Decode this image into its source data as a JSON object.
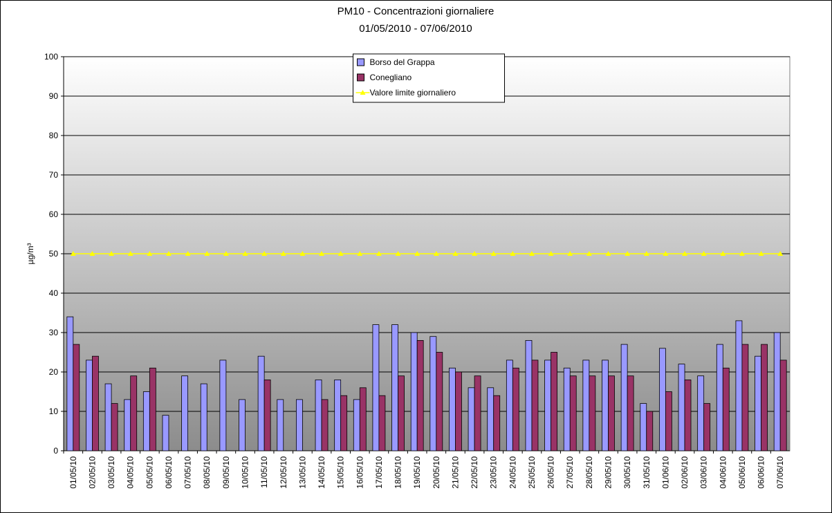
{
  "chart_data": {
    "type": "bar",
    "title": "PM10 - Concentrazioni giornaliere",
    "subtitle": "01/05/2010 - 07/06/2010",
    "y_label": "µg/m³",
    "categories": [
      "01/05/10",
      "02/05/10",
      "03/05/10",
      "04/05/10",
      "05/05/10",
      "06/05/10",
      "07/05/10",
      "08/05/10",
      "09/05/10",
      "10/05/10",
      "11/05/10",
      "12/05/10",
      "13/05/10",
      "14/05/10",
      "15/05/10",
      "16/05/10",
      "17/05/10",
      "18/05/10",
      "19/05/10",
      "20/05/10",
      "21/05/10",
      "22/05/10",
      "23/05/10",
      "24/05/10",
      "25/05/10",
      "26/05/10",
      "27/05/10",
      "28/05/10",
      "29/05/10",
      "30/05/10",
      "31/05/10",
      "01/06/10",
      "02/06/10",
      "03/06/10",
      "04/06/10",
      "05/06/10",
      "06/06/10",
      "07/06/10"
    ],
    "series": [
      {
        "name": "Borso del Grappa",
        "color": "#9999ff",
        "values": [
          34,
          23,
          17,
          13,
          15,
          9,
          19,
          17,
          23,
          13,
          24,
          13,
          13,
          18,
          18,
          13,
          32,
          32,
          30,
          29,
          21,
          16,
          16,
          23,
          28,
          23,
          21,
          23,
          23,
          27,
          12,
          26,
          22,
          19,
          27,
          33,
          24,
          30
        ]
      },
      {
        "name": "Conegliano",
        "color": "#993366",
        "values": [
          27,
          24,
          12,
          19,
          21,
          null,
          null,
          null,
          null,
          null,
          18,
          null,
          null,
          13,
          14,
          16,
          14,
          19,
          28,
          25,
          20,
          19,
          14,
          21,
          23,
          25,
          19,
          19,
          19,
          19,
          10,
          15,
          18,
          12,
          21,
          27,
          27,
          23
        ]
      },
      {
        "name": "Valore limite giornaliero",
        "color": "#ffff00",
        "type": "line",
        "values": [
          50,
          50,
          50,
          50,
          50,
          50,
          50,
          50,
          50,
          50,
          50,
          50,
          50,
          50,
          50,
          50,
          50,
          50,
          50,
          50,
          50,
          50,
          50,
          50,
          50,
          50,
          50,
          50,
          50,
          50,
          50,
          50,
          50,
          50,
          50,
          50,
          50,
          50
        ]
      }
    ],
    "ylim": [
      0,
      100
    ],
    "yticks": [
      0,
      10,
      20,
      30,
      40,
      50,
      60,
      70,
      80,
      90,
      100
    ],
    "grid": true,
    "legend": "top"
  }
}
